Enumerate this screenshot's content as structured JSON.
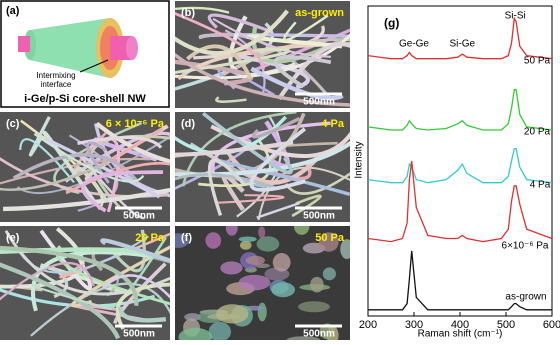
{
  "schematic": {
    "label": "(a)",
    "annotation_lines": [
      "Intermixing",
      "interface"
    ],
    "caption": "i-Ge/p-Si core-shell NW"
  },
  "sem_panels": [
    {
      "label": "(b)",
      "condition": "as-grown",
      "scale_bar": "500nm"
    },
    {
      "label": "(c)",
      "condition": "6 × 10⁻⁶ Pa",
      "scale_bar": "500nm"
    },
    {
      "label": "(d)",
      "condition": "4 Pa",
      "scale_bar": "500nm"
    },
    {
      "label": "(e)",
      "condition": "20 Pa",
      "scale_bar": "500nm"
    },
    {
      "label": "(f)",
      "condition": "50 Pa",
      "scale_bar": "500nm"
    }
  ],
  "chart_data": {
    "type": "line",
    "panel_label": "(g)",
    "xlabel": "Raman shift (cm⁻¹)",
    "ylabel": "Intensity",
    "annotations": [
      "Ge-Ge",
      "Si-Ge",
      "Si-Si"
    ],
    "x": [
      200,
      250,
      275,
      285,
      290,
      295,
      305,
      330,
      370,
      395,
      405,
      415,
      450,
      490,
      505,
      512,
      518,
      522,
      530,
      545,
      600
    ],
    "series": [
      {
        "name": "50 Pa",
        "color": "#e03030",
        "values": [
          84,
          83,
          83,
          84,
          85,
          84,
          83,
          83,
          83,
          83.5,
          84.5,
          83.5,
          83,
          83,
          84,
          88,
          96,
          95,
          87,
          84,
          83
        ]
      },
      {
        "name": "20 Pa",
        "color": "#33cc33",
        "values": [
          61,
          60,
          60,
          61.5,
          63,
          62,
          60.5,
          60,
          60.5,
          62,
          63,
          61.5,
          60,
          60,
          62,
          67,
          73,
          73,
          65,
          61,
          60
        ]
      },
      {
        "name": "4 Pa",
        "color": "#33cccc",
        "values": [
          44,
          43,
          43,
          45,
          49,
          48,
          44,
          43,
          44,
          47,
          49,
          46,
          43,
          43,
          45,
          50,
          54,
          54,
          48,
          44,
          43
        ]
      },
      {
        "name": "6×10⁻⁶ Pa",
        "color": "#e03030",
        "values": [
          25,
          24,
          25,
          30,
          44,
          50,
          35,
          26,
          25,
          25,
          26,
          25,
          24,
          25,
          28,
          37,
          42,
          42,
          36,
          28,
          25
        ]
      },
      {
        "name": "as-grown",
        "color": "#111111",
        "values": [
          2,
          2,
          2,
          4,
          12,
          21,
          6,
          2,
          2,
          2,
          2,
          2,
          2,
          2,
          2,
          3,
          4,
          4,
          3,
          2,
          2
        ]
      }
    ],
    "xlim": [
      200,
      600
    ],
    "xticks": [
      200,
      300,
      400,
      500,
      600
    ],
    "ylim": [
      0,
      100
    ]
  }
}
